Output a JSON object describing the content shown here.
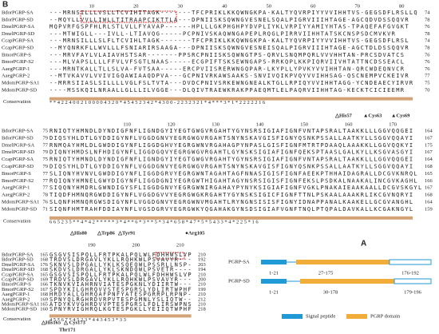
{
  "panel_b": {
    "label": "B",
    "conservation_label": "Conservation",
    "blocks": [
      {
        "ruler": [
          10,
          20,
          30,
          40,
          50,
          60,
          70,
          80
        ],
        "rows": [
          {
            "name": "BdorPGRP-SA",
            "seq": "---MRNSILLLVSLLTCVIHITAGK-------TFCPRIKLKKQWNGKPA-KALTYQVRPIYYVVIHHTVS-GEGSDFLRSLLQ",
            "end": "74"
          },
          {
            "name": "BdorPGRP-SD",
            "seq": "--MQYLLVVLLIWLLTITRAAPCIKTTLA---DPNIISKSQWNGVESNELSQALPIGRVIIIHTAGE-AGCQDVDSSQQVR",
            "end": "78"
          },
          {
            "name": "DmelPGRP-SA",
            "seq": "MQPVRFGSPFHLRLSTLVLLFYAVAP------HPLLLGKPHGHPYDVPLIYKLVRPIYYAMIYHTAS-TPAQEFAFGVGKT",
            "end": "76"
          },
          {
            "name": "DmelPGRP-SD",
            "seq": "---MTWIGLL---IVLL-LTIAVQG-----PCPNIVSKAQWNGAPEPLRQGLPIRRVIIHHTATSKCNSPSDCMVKVR",
            "end": "78"
          },
          {
            "name": "CcapPGRP-SA",
            "seq": "---MRNSILLLSLFLTCVIHLTAGK-------TFCPRIKLKKQWNGKPA-KALTYQVRPIYYVVIHHTVS-GEGSDFLRSL",
            "end": "74"
          },
          {
            "name": "CcapPGRP-SD",
            "seq": "--MYQNRKFLLWVLLLFSNIARIRSAAGA---DPNIISKSQWNGVESNEISQALPIGRVIIIHTAGE-AGCTDLDSSQQVR",
            "end": "78"
          },
          {
            "name": "BmorPGRP-S",
            "seq": "---MRVFAYLVLAIAVHSTSAR-------PPSRCPNIISKSQWNGTPS-QRVLSNQMPQRLVVVHHTAN-PRCSDVATCS",
            "end": "76"
          },
          {
            "name": "BmorPGRP-S2",
            "seq": "---MLVAPSLLLLFFVLVFSGTLNAAS-----ECGPIFTSKSEWNGAPS-RRKQPLKKPIQRVIIVHTATTNCDSSEACL",
            "end": "76"
          },
          {
            "name": "AaegPGRP-1",
            "seq": "---MRNTKALLTLLSLVA-FVTSAA-----ERCPVIISRERWNGQPAR-LKYPLLYPVKYVVIHHTAN-QRCWDEQNVCR",
            "end": "76"
          },
          {
            "name": "AaegPGRP-2",
            "seq": "--MTVKAVVLVVIVIGQAWIAAQDPVA---GCPNIVRKAWSAAKS-SNVIVQIKPVQYVVIHHSAG-QSCNEMPVCKEIVR",
            "end": "77"
          },
          {
            "name": "MdomPGRP-SA1",
            "seq": "--MRRSIIASLSILLLLVGLFSLTVTA---DVDCPNIVSRKEWNGNEALKTGLLRPIQYVVIHHTAGG-YCNDEAECYIRVR",
            "end": "75"
          },
          {
            "name": "MdomPGRP-SD",
            "seq": "----MSSKQILNRAALLGLLLILVGGE---DLQIVTRAEWKRAKPPAEQMTLELPAQRVIIHHTAG-KECKTCICIEEMR",
            "end": "70"
          }
        ],
        "conservation": "* * 4 2 2 4 0 0 2 1 0 0 0 0 4 3 2 0 * 4 5 4 5 2 3 4 2 * 4 3 0 0 - 2 2 3 2 3 2 1 * 4 * * * 3 * 1 * 2 2 2 2 2 1 6",
        "annotations": [
          "△His57",
          "▲Cys63",
          "▲Cys69"
        ]
      },
      {
        "ruler": [
          110,
          120,
          130,
          140,
          150,
          160,
          170
        ],
        "rows": [
          {
            "name": "BdorPGRP-SA",
            "start": "75",
            "seq": "RNIQTYHMNDLDYNDIGFNFLIGNDGYIYEGTGWGVRGAHTYGYNSRSIGIAFIGNFVNTAPSRALTAAKKLLLGGVQQGEI",
            "end": "164"
          },
          {
            "name": "BdorPGRP-SD",
            "start": "79",
            "seq": "DIQSYHLDTLGYDDIGYNFLVGGDGNVYEGRGWGVRGAHTSNYNSKAVGISFIGNYQSNKPSSALLAATKYLLSGGVQQAYI",
            "end": "167"
          },
          {
            "name": "DmelPGRP-SA",
            "start": "77",
            "seq": "RNMQAYHMLDLGWDDIGYNFLIGGDGHVYEGRGWNVRGAHAGPYNPASLGISFIGNFMTRTPDAAQLAAAKKLLGGVQQKYI",
            "end": "175"
          },
          {
            "name": "DmelPGRP-SD",
            "start": "79",
            "seq": "DIQNYHMDSLNFHDIGYNFLIGGDGQVYEGRGWGVRGAHTLGYNSKSIGIAFIGNFQEKSPTAASLGALKYLLKSGVASGYI",
            "end": "167"
          },
          {
            "name": "CcapPGRP-SA",
            "start": "75",
            "seq": "RNIQTYHMNDLDYNDIGFNFLIGNDGYIYEGTGWGVRGAHTYGYNSRSIGIAFIGNFVNTAPSRALTAAKKLLLGGVQQGEI",
            "end": "164"
          },
          {
            "name": "CcapPGRP-SD",
            "start": "79",
            "seq": "DIQSYHLDTLGYDDIGYNFLVGGDGNVYEGRGWGVRGAHTSNYNSKAVGISFIGNYQSNKPSSALLAATKYLLSGGVQQAYI",
            "end": "168"
          },
          {
            "name": "BmorPGRP-S",
            "start": "77",
            "seq": "SLIQNYHVNVLGWDDIGYNFLIGGDGRVYEGRGWNTAGAHTAGFNNASIGISFIGNFAEEKPTHHAIDAGRALLDCGVKNRQL",
            "end": "165"
          },
          {
            "name": "BmorPGRP-S2",
            "start": "77",
            "seq": "RQIQNYHMNELGWYDIGYNFLIGGDGNIYEGRGWTHIGAHTAGYNSRSIGISFIGNFEKSLPSDKALNAAKALINCGVKAGHL",
            "end": "166"
          },
          {
            "name": "AaegPGRP-1",
            "start": "77",
            "seq": "SIQQNYHMDRLGWNDIGYSFLIGGDGNVYEGRGWNIRGAHAYPYNYKSIGIAFIGNFVGKLPNAKAIEAAKAALLDCGVSKGYL",
            "end": "167"
          },
          {
            "name": "AaegPGRP-2",
            "start": "78",
            "seq": "TIQDFHMNQRGWDDIGYNFLVGGDGVVYEGRGWGKRGAHTYGYNSKSIGICFIGNFTTNLPSKAALAAAKRLIKCGVNQRYI",
            "end": "168"
          },
          {
            "name": "MdomPGRP-SA1",
            "start": "76",
            "seq": "SLQNFHMNQRGWSDIGYNFLVGGDGNVYEGRGWNVMGAHTLRYNGNSISISFIGNYIDNAPPANALKAAKELLGCGVANGHL",
            "end": "164"
          },
          {
            "name": "MdomPGRP-SD",
            "start": "71",
            "seq": "SIQNFHMTRAHFDDIAYNFLVGSDGRVYEGRGWKYQGAHAKGYNSDSIGIAFVGNFTNQLPTQPALDAVKALLKCGAKNGYL",
            "end": "159"
          }
        ],
        "conservation": "6 6 5 2 3 5 * * 4 * 4 2 * * * * * 3 * 4 * * 6 * 3 * * 5 * 3 4 * 6 5 8 * 4 7 * 5 * 5 4 3 3 * 4 * 2 2 5 * 1 6",
        "annotations": [
          "△His80",
          "△Trp86",
          "△Tyr91",
          "●Arg105"
        ]
      },
      {
        "ruler": [
          190,
          200,
          210
        ],
        "rows": [
          {
            "name": "BdorPGRP-SA",
            "start": "165",
            "seq": "GSGVSISPQLLFRTPKALPQLWLFDHHWSLVP",
            "end": "210"
          },
          {
            "name": "BdorPGRP-SD",
            "start": "168",
            "seq": "TRDVSLDRGAVLYKLLRQHKWLPSVAVYR---",
            "end": "192"
          },
          {
            "name": "DmelPGRP-SA",
            "start": "176",
            "seq": "SKNVSLDPGALLYKLKSQEQWLPSSRLLNSP-",
            "end": "203"
          },
          {
            "name": "DmelPGRP-SD",
            "start": "168",
            "seq": "SKDVSLDRGALLYKLSKNDQWLPSVETR----",
            "end": "194"
          },
          {
            "name": "CcapPGRP-SA",
            "start": "165",
            "seq": "GSGVSISPQLLFRTPKALPQLWLFDHHWSLVP",
            "end": "210"
          },
          {
            "name": "CcapPGRP-SD",
            "start": "169",
            "seq": "TRDVSLDRGAVLYKLLRQHKWLPSVAVYR---",
            "end": "200"
          },
          {
            "name": "BmorPGRP-S",
            "start": "166",
            "seq": "TKNVKVIAHRNVIATESPGKNLYDIIRTW---",
            "end": "210"
          },
          {
            "name": "BmorPGRP-S2",
            "start": "167",
            "seq": "SPDYKILGHRQVVSTESPGRSLYDLIRTWPHF",
            "end": "199"
          },
          {
            "name": "AaegPGRP-1",
            "start": "168",
            "seq": "HRDYALLGHRQAFPNFYATESPGRRPLRPNP-",
            "end": "210"
          },
          {
            "name": "AaegPGRP-2",
            "start": "169",
            "seq": "SPNYQLRGHRDVRPVTESPGMNLYSLIQTW--",
            "end": "212"
          },
          {
            "name": "MdomPGRP-SA1",
            "start": "165",
            "seq": "ATDYKVVGHRDVVPTESPGRSLFDLIRSWPNS",
            "end": "210"
          },
          {
            "name": "MdomPGRP-SD",
            "start": "160",
            "seq": "SPNYRVIGHRQLKGTESPGKLLYEIIQTWPHF",
            "end": "218"
          }
        ],
        "conservation": "4 5 * 6 7 * 4 5 2 3 * 4 4 3 4 5 3 * 3 3",
        "annotations": [
          "△His165",
          "△ Cys173",
          "Thr171"
        ]
      }
    ]
  },
  "panel_a": {
    "label": "A",
    "proteins": [
      {
        "name": "PGRP-SA",
        "signal": "1-21",
        "domain": "27-175",
        "tail": "176-192"
      },
      {
        "name": "PGRP-SD",
        "signal": "1-21",
        "domain": "30-178",
        "tail": "179-196"
      }
    ],
    "legend": [
      "Signal peptide",
      "PGRP domain"
    ]
  }
}
